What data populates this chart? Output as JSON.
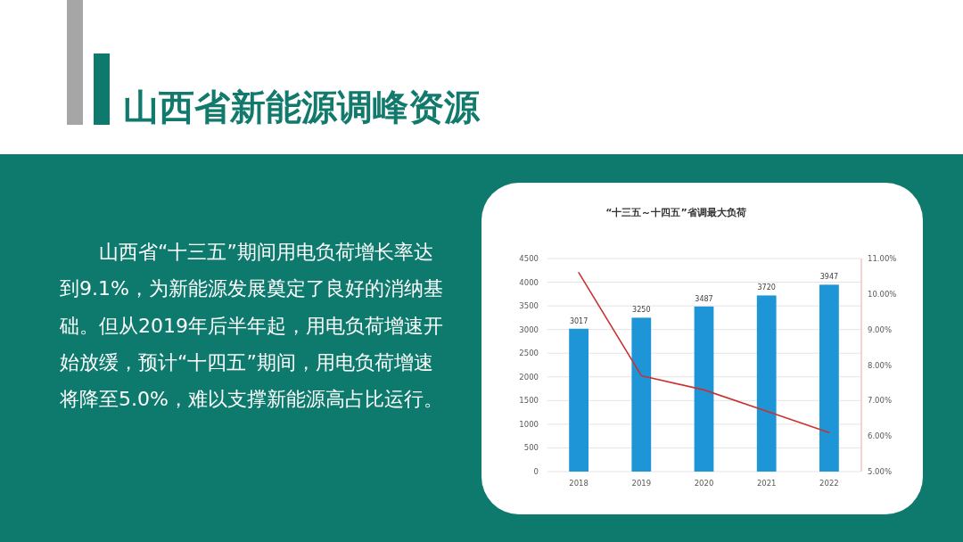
{
  "chart_data": {
    "type": "bar",
    "title": "“十三五～十四五”省调最大负荷",
    "annotations": [
      "山西省新能源调峰资源",
      "山西省“十三五”期间用电负荷增长率达到9.1%，为新能源发展奠定了良好的消纳基础。但从2019年后半年起，用电负荷增速开始放缓，预计“十四五”期间，用电负荷增速将降至5.0%，难以支撑新能源高占比运行。"
    ],
    "categories": [
      "2018",
      "2019",
      "2020",
      "2021",
      "2022"
    ],
    "series": [
      {
        "type": "bar",
        "color": "#1e95d6",
        "values": [
          3017,
          3250,
          3487,
          3720,
          3947
        ],
        "value_labels": [
          "3017",
          "3250",
          "3487",
          "3720",
          "3947"
        ]
      },
      {
        "type": "line",
        "axis": "y2",
        "color": "#c8322f",
        "values": [
          10.6,
          7.7,
          7.3,
          6.7,
          6.1
        ]
      }
    ],
    "ylim": [
      0,
      4500
    ],
    "yticks": [
      0,
      500,
      1000,
      1500,
      2000,
      2500,
      3000,
      3500,
      4000,
      4500
    ],
    "y2lim": [
      5,
      11
    ],
    "y2ticks": [
      {
        "value": 5,
        "label": "5.00%"
      },
      {
        "value": 6,
        "label": "6.00%"
      },
      {
        "value": 7,
        "label": "7.00%"
      },
      {
        "value": 8,
        "label": "8.00%"
      },
      {
        "value": 9,
        "label": "9.00%"
      },
      {
        "value": 10,
        "label": "10.00%"
      },
      {
        "value": 11,
        "label": "11.00%"
      }
    ],
    "grid": "y"
  }
}
